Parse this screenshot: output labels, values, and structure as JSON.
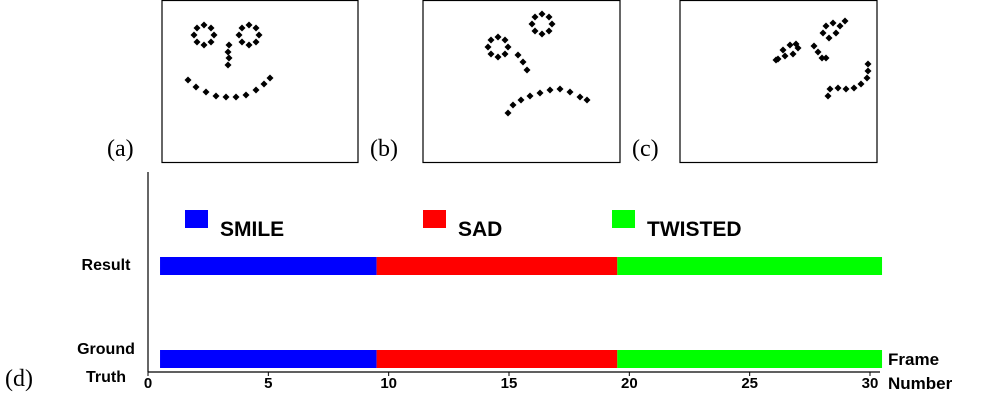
{
  "panels": [
    {
      "label": "(a)"
    },
    {
      "label": "(b)"
    },
    {
      "label": "(c)"
    }
  ],
  "chart_data": {
    "type": "timeline",
    "label": "(d)",
    "categories": [
      "Result",
      "Ground Truth"
    ],
    "series": [
      {
        "name": "SMILE",
        "color": "#0000ff",
        "values": [
          [
            0.5,
            9.5
          ],
          [
            0.5,
            9.5
          ]
        ]
      },
      {
        "name": "SAD",
        "color": "#ff0000",
        "values": [
          [
            9.5,
            19.5
          ],
          [
            9.5,
            19.5
          ]
        ]
      },
      {
        "name": "TWISTED",
        "color": "#00ff00",
        "values": [
          [
            19.5,
            30.5
          ],
          [
            19.5,
            30.5
          ]
        ]
      }
    ],
    "xlabel": "Frame Number",
    "xlim": [
      0,
      30
    ],
    "xticks": [
      0,
      5,
      10,
      15,
      20,
      25,
      30
    ]
  }
}
